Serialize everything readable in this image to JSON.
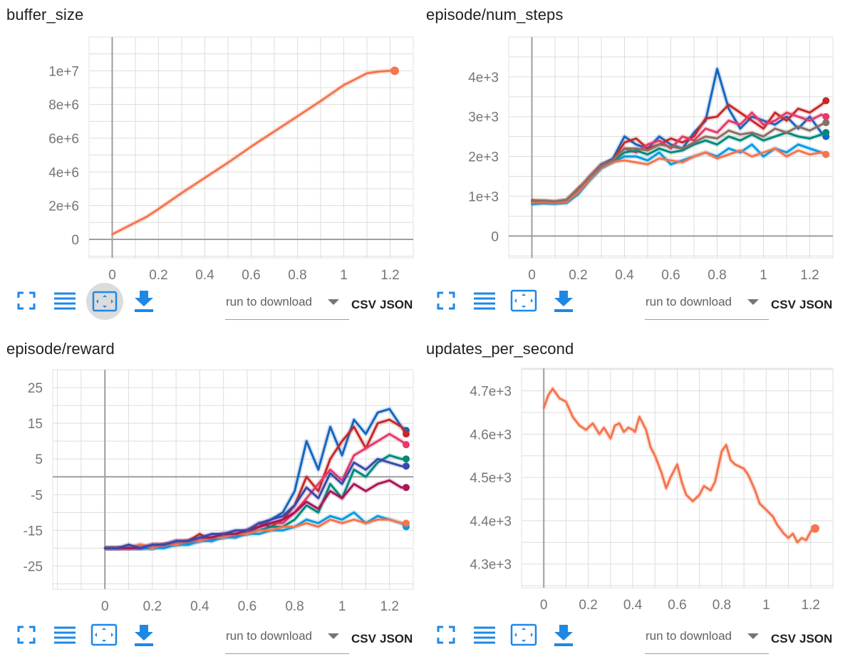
{
  "colors": {
    "accent": "#1e88e5",
    "orange": "#f4754e",
    "grid": "#dddddd",
    "axis": "#9e9e9e"
  },
  "toolbar": {
    "run_placeholder": "run to download",
    "csv_label": "CSV",
    "json_label": "JSON",
    "icons": [
      "fullscreen-icon",
      "toggle-log-scale-icon",
      "fit-domain-icon",
      "download-icon"
    ]
  },
  "cards": [
    {
      "title": "buffer_size"
    },
    {
      "title": "episode/num_steps"
    },
    {
      "title": "episode/reward"
    },
    {
      "title": "updates_per_second"
    }
  ],
  "chart_data": [
    {
      "type": "line",
      "title": "buffer_size",
      "xlim": [
        -0.1,
        1.3
      ],
      "ylim": [
        -1100000,
        12000000
      ],
      "xticks": [
        0,
        0.2,
        0.4,
        0.6,
        0.8,
        1,
        1.2
      ],
      "xtick_labels": [
        "0",
        "0.2",
        "0.4",
        "0.6",
        "0.8",
        "1",
        "1.2"
      ],
      "yticks": [
        0,
        2000000,
        4000000,
        6000000,
        8000000,
        10000000
      ],
      "ytick_labels": [
        "0",
        "2e+6",
        "4e+6",
        "6e+6",
        "8e+6",
        "1e+7"
      ],
      "series": [
        {
          "color": "#f4754e",
          "end_marker": true,
          "x": [
            0,
            0.05,
            0.1,
            0.15,
            0.2,
            0.3,
            0.4,
            0.5,
            0.6,
            0.7,
            0.8,
            0.9,
            1.0,
            1.05,
            1.1,
            1.15,
            1.2,
            1.22
          ],
          "y": [
            300000,
            650000,
            1000000,
            1350000,
            1800000,
            2750000,
            3650000,
            4550000,
            5500000,
            6400000,
            7300000,
            8200000,
            9150000,
            9500000,
            9850000,
            9950000,
            10000000,
            10000000
          ]
        }
      ]
    },
    {
      "type": "line",
      "title": "episode/num_steps",
      "xlim": [
        -0.1,
        1.3
      ],
      "ylim": [
        -550,
        5000
      ],
      "xticks": [
        0,
        0.2,
        0.4,
        0.6,
        0.8,
        1,
        1.2
      ],
      "xtick_labels": [
        "0",
        "0.2",
        "0.4",
        "0.6",
        "0.8",
        "1",
        "1.2"
      ],
      "yticks": [
        0,
        1000,
        2000,
        3000,
        4000
      ],
      "ytick_labels": [
        "0",
        "1e+3",
        "2e+3",
        "3e+3",
        "4e+3"
      ],
      "x": [
        0,
        0.05,
        0.1,
        0.15,
        0.2,
        0.25,
        0.3,
        0.35,
        0.4,
        0.45,
        0.5,
        0.55,
        0.6,
        0.65,
        0.7,
        0.75,
        0.8,
        0.85,
        0.9,
        0.95,
        1.0,
        1.05,
        1.1,
        1.15,
        1.2,
        1.25,
        1.27
      ],
      "series": [
        {
          "color": "#1565c0",
          "values": [
            850,
            850,
            830,
            870,
            1100,
            1500,
            1800,
            1950,
            2500,
            2300,
            2200,
            2500,
            2300,
            2200,
            2600,
            2900,
            4200,
            3200,
            2700,
            3000,
            2900,
            2800,
            3000,
            2700,
            3000,
            2600,
            2500
          ]
        },
        {
          "color": "#c62828",
          "values": [
            900,
            880,
            850,
            900,
            1200,
            1450,
            1750,
            1900,
            2350,
            2450,
            2200,
            2300,
            2450,
            2350,
            2500,
            2950,
            3000,
            3300,
            3100,
            2900,
            2700,
            3100,
            2900,
            3200,
            3100,
            3300,
            3400
          ]
        },
        {
          "color": "#e53a6a",
          "values": [
            820,
            860,
            840,
            880,
            1150,
            1500,
            1800,
            1900,
            2200,
            2100,
            2300,
            2400,
            2200,
            2500,
            2400,
            2700,
            2600,
            2900,
            2800,
            3100,
            2800,
            2900,
            3100,
            3000,
            2900,
            3050,
            3000
          ]
        },
        {
          "color": "#039be5",
          "values": [
            800,
            820,
            810,
            830,
            1050,
            1400,
            1700,
            1850,
            2000,
            2000,
            1900,
            2100,
            1800,
            1900,
            2000,
            2100,
            2000,
            2200,
            2100,
            2300,
            2000,
            2200,
            2100,
            2300,
            2200,
            2100,
            2050
          ]
        },
        {
          "color": "#00897b",
          "values": [
            860,
            870,
            860,
            900,
            1150,
            1450,
            1780,
            1880,
            2100,
            2150,
            2050,
            2200,
            2100,
            2150,
            2300,
            2400,
            2300,
            2500,
            2400,
            2550,
            2400,
            2500,
            2600,
            2500,
            2450,
            2550,
            2600
          ]
        },
        {
          "color": "#f4754e",
          "values": [
            840,
            850,
            830,
            860,
            1100,
            1420,
            1720,
            1860,
            1900,
            1850,
            1800,
            1950,
            1900,
            1850,
            2000,
            2100,
            1950,
            2050,
            2150,
            2000,
            2100,
            2200,
            2000,
            2150,
            2050,
            2100,
            2050
          ]
        },
        {
          "color": "#8d6e63",
          "values": [
            880,
            890,
            870,
            910,
            1180,
            1480,
            1760,
            1900,
            2200,
            2200,
            2150,
            2300,
            2250,
            2200,
            2350,
            2500,
            2450,
            2650,
            2550,
            2600,
            2500,
            2700,
            2600,
            2750,
            2650,
            2800,
            2850
          ]
        }
      ]
    },
    {
      "type": "line",
      "title": "episode/reward",
      "xlim": [
        -0.22,
        1.3
      ],
      "ylim": [
        -31.5,
        30
      ],
      "xticks": [
        0,
        0.2,
        0.4,
        0.6,
        0.8,
        1,
        1.2
      ],
      "xtick_labels": [
        "0",
        "0.2",
        "0.4",
        "0.6",
        "0.8",
        "1",
        "1.2"
      ],
      "yticks": [
        -25,
        -15,
        -5,
        5,
        15,
        25
      ],
      "ytick_labels": [
        "-25",
        "-15",
        "-5",
        "5",
        "15",
        "25"
      ],
      "x": [
        0,
        0.05,
        0.1,
        0.15,
        0.2,
        0.25,
        0.3,
        0.35,
        0.4,
        0.45,
        0.5,
        0.55,
        0.6,
        0.65,
        0.7,
        0.75,
        0.8,
        0.85,
        0.9,
        0.95,
        1.0,
        1.05,
        1.1,
        1.15,
        1.2,
        1.25,
        1.27
      ],
      "series": [
        {
          "color": "#1565c0",
          "values": [
            -20,
            -20,
            -20,
            -20,
            -20,
            -19,
            -19,
            -18,
            -17,
            -17,
            -17,
            -16,
            -16,
            -14,
            -12,
            -10,
            -4,
            10,
            2,
            14,
            6,
            16,
            12,
            18,
            19,
            14,
            13
          ]
        },
        {
          "color": "#c62828",
          "values": [
            -20,
            -20,
            -20,
            -19,
            -20,
            -19,
            -18,
            -18,
            -16,
            -18,
            -16,
            -17,
            -15,
            -13,
            -14,
            -12,
            -8,
            0,
            -4,
            5,
            10,
            14,
            8,
            15,
            16,
            14,
            12
          ]
        },
        {
          "color": "#e53a6a",
          "values": [
            -20,
            -20,
            -20,
            -20,
            -19,
            -19,
            -19,
            -18,
            -18,
            -17,
            -16,
            -16,
            -15,
            -14,
            -13,
            -13,
            -10,
            -6,
            -2,
            2,
            -1,
            6,
            8,
            10,
            12,
            10,
            9
          ]
        },
        {
          "color": "#00897b",
          "values": [
            -20,
            -20,
            -20,
            -20,
            -20,
            -19,
            -19,
            -19,
            -18,
            -17,
            -17,
            -16,
            -16,
            -15,
            -14,
            -14,
            -12,
            -8,
            -10,
            -2,
            -6,
            2,
            0,
            4,
            6,
            5,
            5
          ]
        },
        {
          "color": "#039be5",
          "values": [
            -20,
            -20,
            -20,
            -20,
            -20,
            -20,
            -19,
            -19,
            -18,
            -18,
            -17,
            -17,
            -16,
            -16,
            -15,
            -15,
            -14,
            -12,
            -13,
            -11,
            -12,
            -10,
            -13,
            -11,
            -12,
            -13,
            -14
          ]
        },
        {
          "color": "#f4754e",
          "values": [
            -20,
            -20,
            -20,
            -19,
            -20,
            -19,
            -19,
            -18,
            -18,
            -17,
            -17,
            -16,
            -16,
            -15,
            -15,
            -14,
            -14,
            -13,
            -14,
            -12,
            -13,
            -12,
            -13,
            -12,
            -12,
            -13,
            -13
          ]
        },
        {
          "color": "#ad1457",
          "values": [
            -20,
            -20,
            -20,
            -20,
            -19,
            -19,
            -18,
            -18,
            -17,
            -17,
            -16,
            -16,
            -15,
            -14,
            -13,
            -12,
            -10,
            -7,
            -9,
            -4,
            -6,
            -2,
            -4,
            -2,
            -1,
            -3,
            -3
          ]
        },
        {
          "color": "#3949ab",
          "values": [
            -20,
            -20,
            -19,
            -20,
            -19,
            -19,
            -18,
            -18,
            -17,
            -16,
            -16,
            -15,
            -15,
            -13,
            -12,
            -11,
            -8,
            -3,
            -6,
            1,
            -2,
            4,
            2,
            5,
            4,
            3,
            3
          ]
        }
      ]
    },
    {
      "type": "line",
      "title": "updates_per_second",
      "xlim": [
        -0.1,
        1.3
      ],
      "ylim": [
        4245,
        4752
      ],
      "xticks": [
        0,
        0.2,
        0.4,
        0.6,
        0.8,
        1,
        1.2
      ],
      "xtick_labels": [
        "0",
        "0.2",
        "0.4",
        "0.6",
        "0.8",
        "1",
        "1.2"
      ],
      "yticks": [
        4300,
        4400,
        4500,
        4600,
        4700
      ],
      "ytick_labels": [
        "4.3e+3",
        "4.4e+3",
        "4.5e+3",
        "4.6e+3",
        "4.7e+3"
      ],
      "series": [
        {
          "color": "#f4754e",
          "end_marker": true,
          "x": [
            0,
            0.02,
            0.04,
            0.07,
            0.1,
            0.13,
            0.16,
            0.19,
            0.2,
            0.22,
            0.25,
            0.27,
            0.3,
            0.32,
            0.34,
            0.36,
            0.38,
            0.4,
            0.41,
            0.43,
            0.46,
            0.48,
            0.5,
            0.53,
            0.55,
            0.57,
            0.6,
            0.62,
            0.64,
            0.67,
            0.7,
            0.72,
            0.75,
            0.77,
            0.8,
            0.82,
            0.84,
            0.86,
            0.88,
            0.9,
            0.92,
            0.95,
            0.97,
            1.0,
            1.03,
            1.05,
            1.08,
            1.1,
            1.12,
            1.14,
            1.16,
            1.18,
            1.2,
            1.22
          ],
          "y": [
            4660,
            4690,
            4705,
            4683,
            4675,
            4640,
            4620,
            4610,
            4615,
            4625,
            4600,
            4615,
            4590,
            4620,
            4625,
            4605,
            4615,
            4610,
            4605,
            4640,
            4610,
            4570,
            4550,
            4510,
            4475,
            4500,
            4530,
            4490,
            4460,
            4445,
            4460,
            4480,
            4470,
            4490,
            4560,
            4575,
            4540,
            4530,
            4525,
            4520,
            4505,
            4470,
            4440,
            4425,
            4410,
            4390,
            4370,
            4360,
            4370,
            4350,
            4360,
            4355,
            4375,
            4382
          ]
        }
      ]
    }
  ]
}
